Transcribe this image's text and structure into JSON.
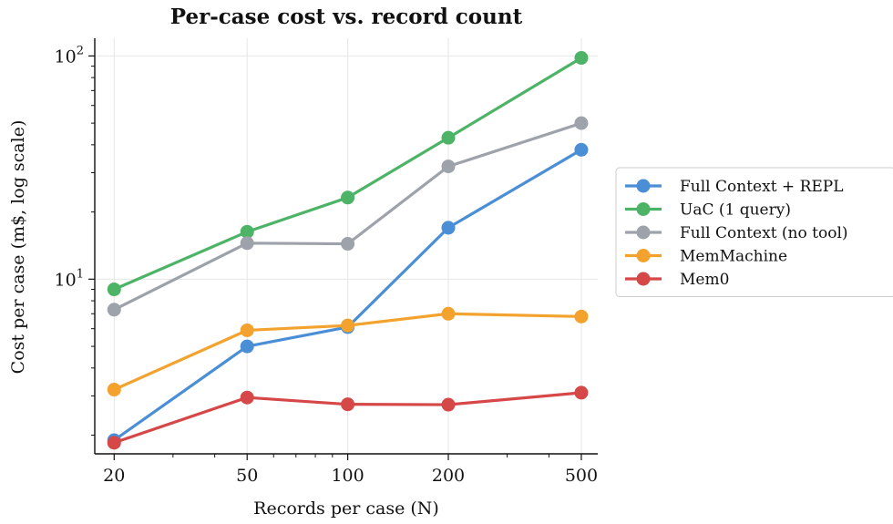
{
  "chart_data": {
    "type": "line",
    "title": "Per-case cost vs. record count",
    "xlabel": "Records per case (N)",
    "ylabel": "Cost per case (m$, log scale)",
    "x_scale": "log",
    "y_scale": "log",
    "x": [
      20,
      50,
      100,
      200,
      500
    ],
    "x_tick_labels": [
      "20",
      "50",
      "100",
      "200",
      "500"
    ],
    "xlim": [
      17.5,
      560
    ],
    "ylim": [
      1.65,
      120
    ],
    "y_ticks": [
      {
        "value": 10,
        "base": "10",
        "exp": "1"
      },
      {
        "value": 100,
        "base": "10",
        "exp": "2"
      }
    ],
    "grid": true,
    "legend_position": "right",
    "series": [
      {
        "name": "Full Context + REPL",
        "color": "#4a8fd6",
        "values": [
          1.9,
          5.0,
          6.1,
          17.0,
          38.0
        ]
      },
      {
        "name": "UaC (1 query)",
        "color": "#4db367",
        "values": [
          9.0,
          16.3,
          23.2,
          43.0,
          98.0
        ]
      },
      {
        "name": "Full Context (no tool)",
        "color": "#9ea2ab",
        "values": [
          7.3,
          14.5,
          14.4,
          32.0,
          50.0
        ]
      },
      {
        "name": "MemMachine",
        "color": "#f3a32d",
        "values": [
          3.2,
          5.9,
          6.2,
          7.0,
          6.8
        ]
      },
      {
        "name": "Mem0",
        "color": "#d64747",
        "values": [
          1.85,
          2.95,
          2.75,
          2.74,
          3.1
        ]
      }
    ]
  }
}
